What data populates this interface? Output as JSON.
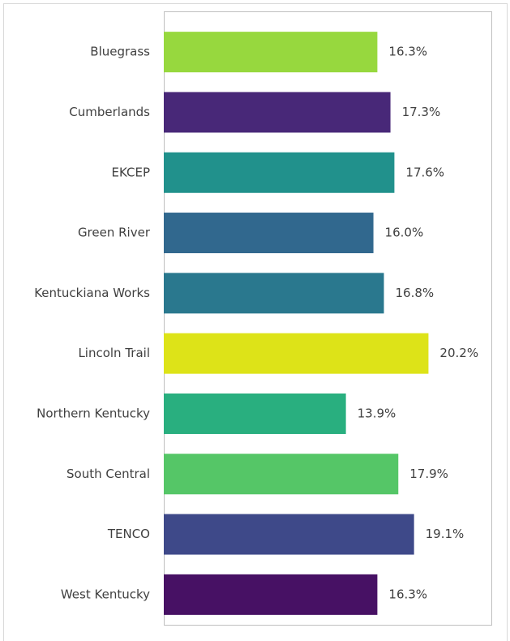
{
  "chart_data": {
    "type": "bar",
    "orientation": "horizontal",
    "categories": [
      "Bluegrass",
      "Cumberlands",
      "EKCEP",
      "Green River",
      "Kentuckiana Works",
      "Lincoln Trail",
      "Northern Kentucky",
      "South Central",
      "TENCO",
      "West Kentucky"
    ],
    "values": [
      16.3,
      17.3,
      17.6,
      16.0,
      16.8,
      20.2,
      13.9,
      17.9,
      19.1,
      16.3
    ],
    "value_labels": [
      "16.3%",
      "17.3%",
      "17.6%",
      "16.0%",
      "16.8%",
      "20.2%",
      "13.9%",
      "17.9%",
      "19.1%",
      "16.3%"
    ],
    "colors": [
      "#97d83e",
      "#482878",
      "#21918c",
      "#31688e",
      "#2a788e",
      "#dde318",
      "#29af7f",
      "#55c667",
      "#3e4989",
      "#471164"
    ],
    "xlim": [
      0,
      25
    ]
  }
}
